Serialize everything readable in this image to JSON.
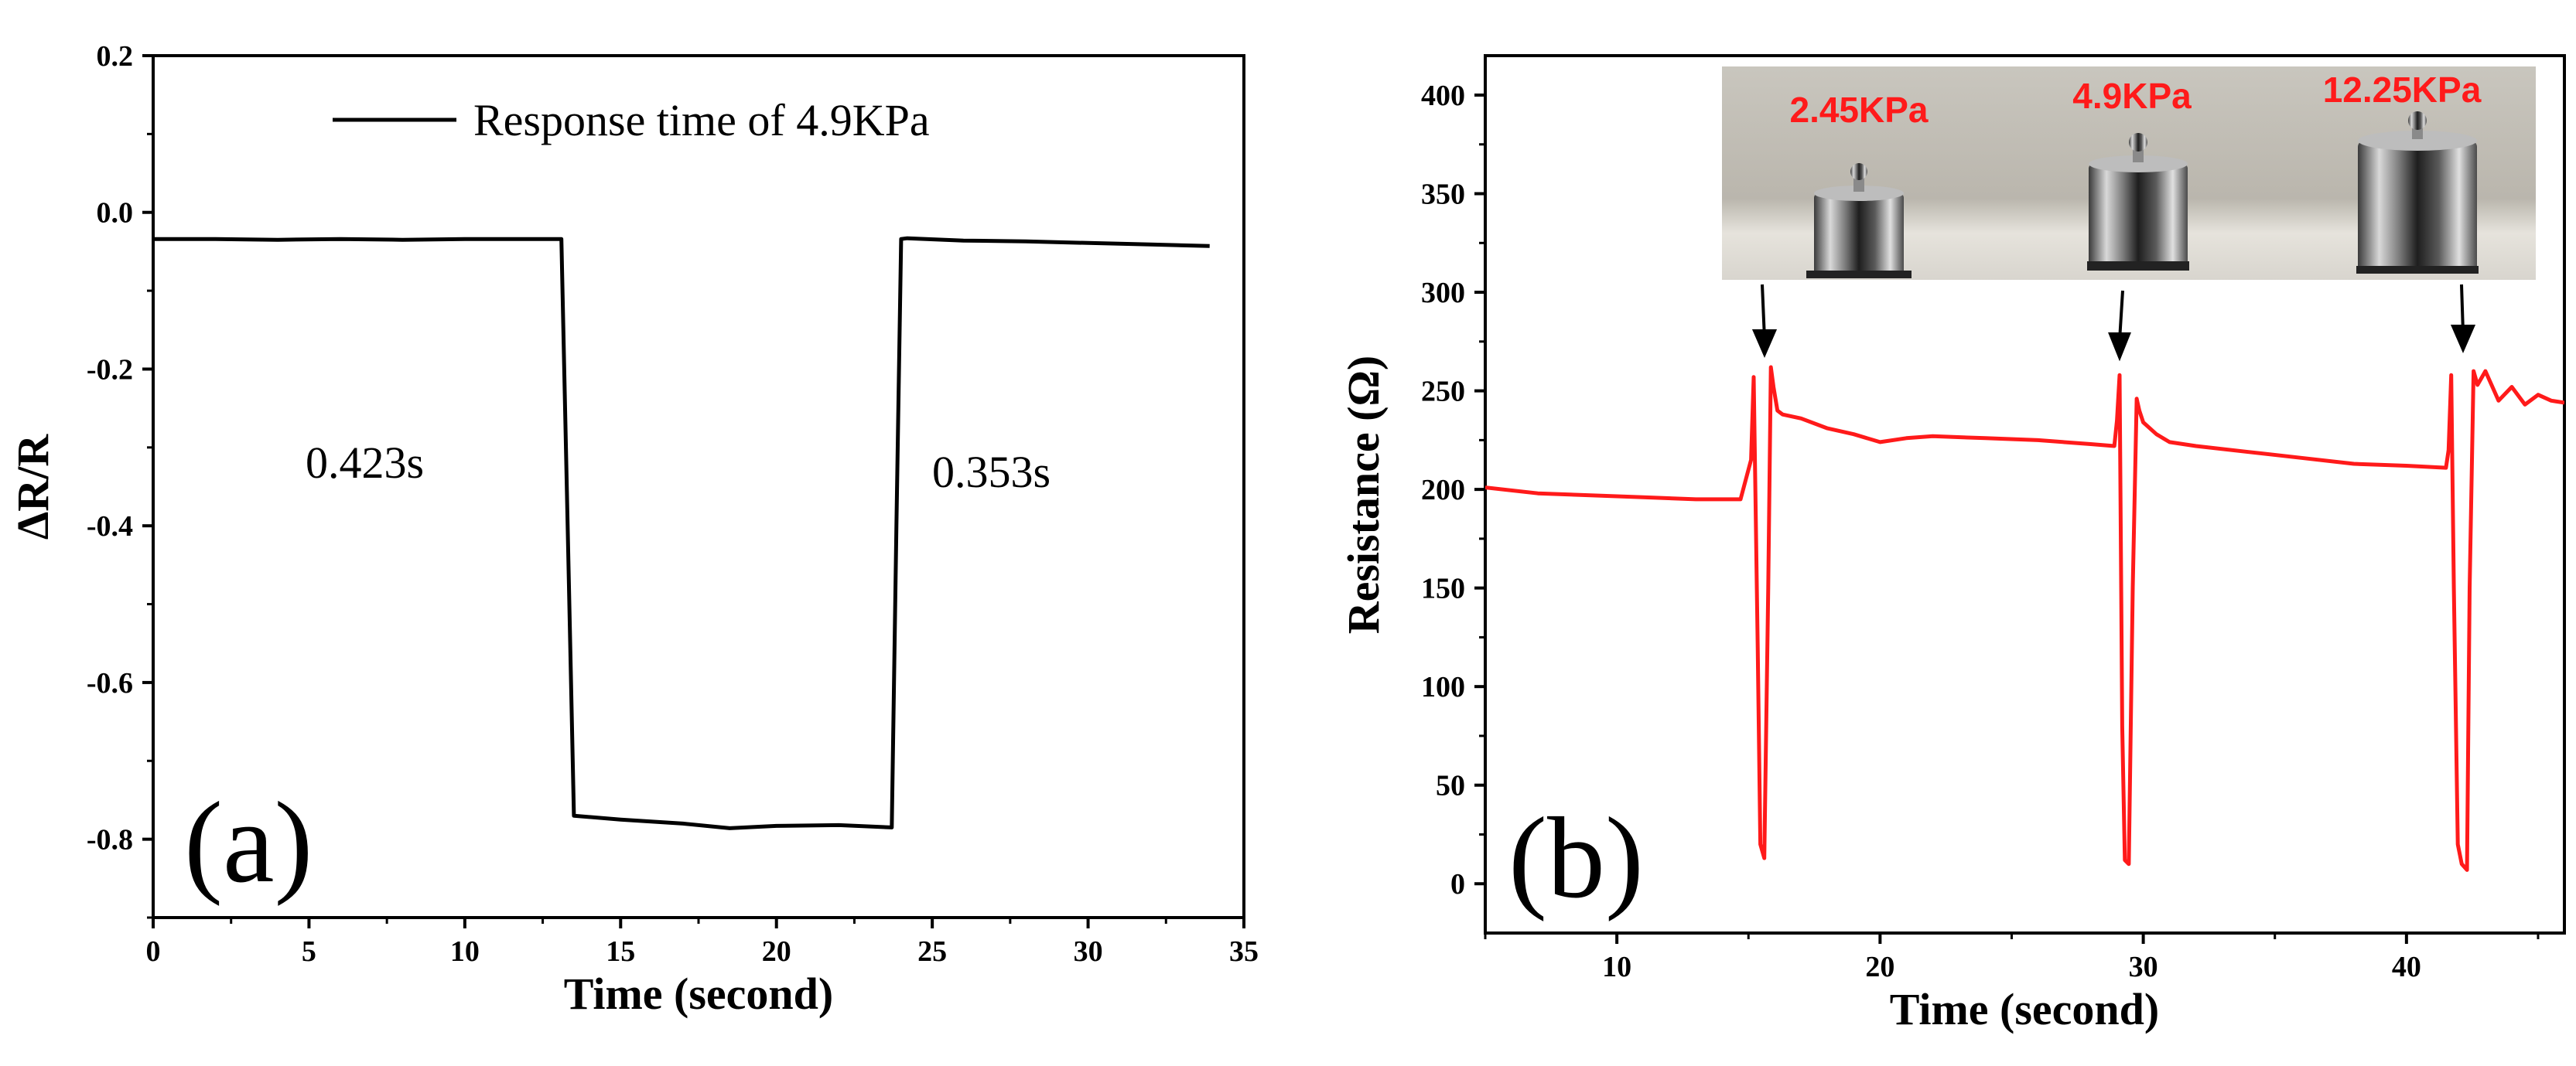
{
  "chart_data": [
    {
      "type": "line",
      "panel_label": "(a)",
      "xlabel": "Time (second)",
      "ylabel": "ΔR/R",
      "xlim": [
        0,
        35
      ],
      "ylim": [
        -0.9,
        0.2
      ],
      "xticks": [
        "0",
        "5",
        "10",
        "15",
        "20",
        "25",
        "30",
        "35"
      ],
      "yticks": [
        "0.2",
        "0.0",
        "-0.2",
        "-0.4",
        "-0.6",
        "-0.8"
      ],
      "legend": "Response time of 4.9KPa",
      "legend_position": "top-right",
      "annotations": {
        "response": "0.423s",
        "recovery": "0.353s"
      },
      "series": [
        {
          "name": "Response time of 4.9KPa",
          "color": "#000000",
          "x": [
            0,
            2,
            4,
            6,
            8,
            10,
            12,
            13.1,
            13.3,
            13.5,
            15,
            17,
            18.5,
            20,
            22,
            23.7,
            23.85,
            24.0,
            24.2,
            26,
            28,
            30,
            32,
            33.9
          ],
          "y": [
            -0.034,
            -0.034,
            -0.035,
            -0.034,
            -0.035,
            -0.034,
            -0.034,
            -0.034,
            -0.4,
            -0.77,
            -0.775,
            -0.78,
            -0.786,
            -0.783,
            -0.782,
            -0.785,
            -0.4,
            -0.034,
            -0.033,
            -0.036,
            -0.037,
            -0.039,
            -0.041,
            -0.043
          ]
        }
      ]
    },
    {
      "type": "line",
      "panel_label": "(b)",
      "xlabel": "Time (second)",
      "ylabel": "Resistance (Ω)",
      "xlim": [
        5,
        46
      ],
      "ylim": [
        -25,
        420
      ],
      "xticks": [
        "10",
        "20",
        "30",
        "40"
      ],
      "yticks": [
        "0",
        "50",
        "100",
        "150",
        "200",
        "250",
        "300",
        "350",
        "400"
      ],
      "inset_labels": [
        "2.45KPa",
        "4.9KPa",
        "12.25KPa"
      ],
      "series": [
        {
          "name": "Resistance",
          "color": "#ff1a1a",
          "x": [
            5,
            7,
            9,
            11,
            13,
            14.7,
            14.9,
            15.1,
            15.2,
            15.35,
            15.45,
            15.6,
            15.75,
            15.85,
            15.95,
            16.1,
            16.3,
            17,
            18,
            19,
            20,
            21,
            22,
            24,
            26,
            28,
            28.9,
            29.0,
            29.1,
            29.2,
            29.3,
            29.45,
            29.6,
            29.75,
            29.85,
            30.0,
            30.5,
            31,
            32,
            34,
            36,
            38,
            40,
            41.5,
            41.6,
            41.7,
            41.8,
            41.95,
            42.1,
            42.3,
            42.4,
            42.55,
            42.7,
            43,
            43.5,
            44,
            44.5,
            45,
            45.5,
            46
          ],
          "y": [
            201,
            198,
            197,
            196,
            195,
            195,
            205,
            215,
            257,
            120,
            20,
            13,
            150,
            262,
            252,
            240,
            238,
            236,
            231,
            228,
            224,
            226,
            227,
            226,
            225,
            223,
            222,
            235,
            258,
            80,
            12,
            10,
            150,
            246,
            240,
            234,
            228,
            224,
            222,
            219,
            216,
            213,
            212,
            211,
            220,
            258,
            150,
            20,
            10,
            7,
            150,
            260,
            253,
            260,
            245,
            252,
            243,
            248,
            245,
            244
          ]
        }
      ]
    }
  ]
}
